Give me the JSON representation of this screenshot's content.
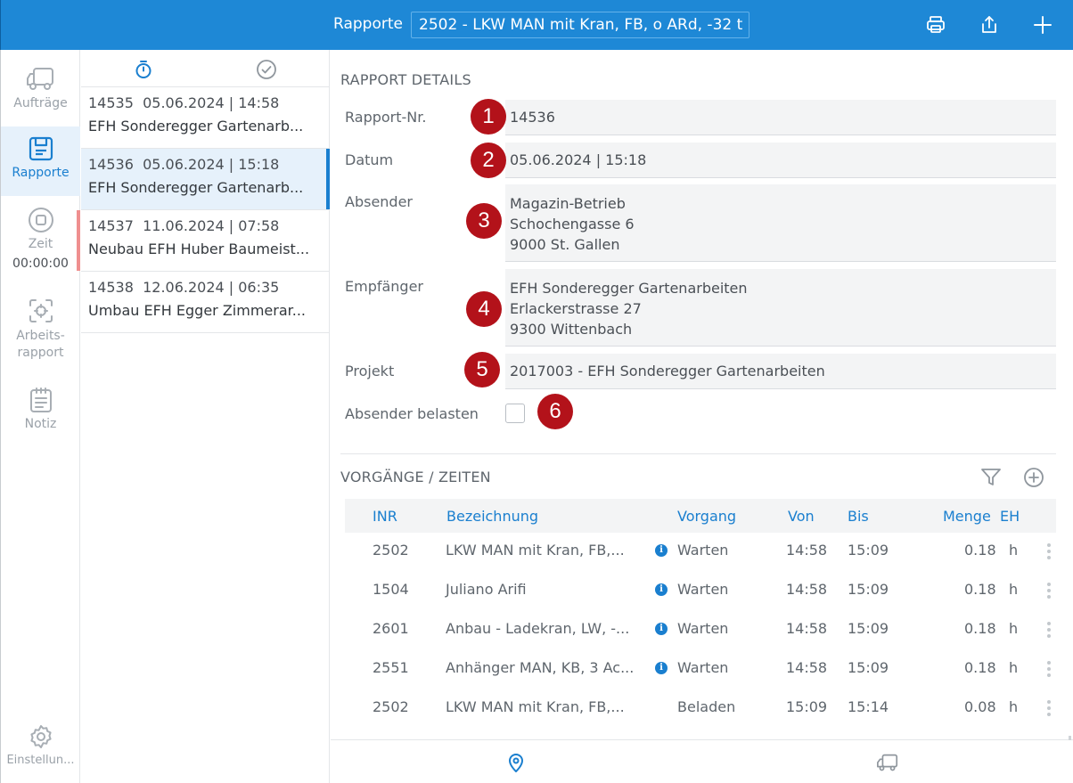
{
  "topbar": {
    "title": "Rapporte",
    "selected_vehicle": "2502 - LKW MAN mit Kran, FB, o ARd, -32 t",
    "icons": [
      "printer-icon",
      "share-icon",
      "plus-icon"
    ]
  },
  "sidebar": {
    "items": [
      {
        "label": "Aufträge",
        "icon": "truck-icon"
      },
      {
        "label": "Rapporte",
        "icon": "report-icon"
      },
      {
        "label": "Zeit",
        "icon": "stop-timer-icon",
        "timer": "00:00:00"
      },
      {
        "label": "Arbeits-\nrapport",
        "icon": "target-icon"
      },
      {
        "label": "Notiz",
        "icon": "notepad-icon"
      },
      {
        "label": "Einstellun...",
        "icon": "gear-icon"
      }
    ]
  },
  "list": {
    "tabs": [
      "stopwatch-icon",
      "check-circle-icon"
    ],
    "items": [
      {
        "nr": "14535",
        "date": "05.06.2024 | 14:58",
        "title": "EFH Sonderegger Gartenarb..."
      },
      {
        "nr": "14536",
        "date": "05.06.2024 | 15:18",
        "title": "EFH Sonderegger Gartenarb..."
      },
      {
        "nr": "14537",
        "date": "11.06.2024 | 07:58",
        "title": "Neubau EFH Huber Baumeist..."
      },
      {
        "nr": "14538",
        "date": "12.06.2024 | 06:35",
        "title": "Umbau EFH Egger Zimmerar..."
      }
    ]
  },
  "details": {
    "section_title": "RAPPORT DETAILS",
    "fields": {
      "rapport_nr": {
        "label": "Rapport-Nr.",
        "value": "14536"
      },
      "datum": {
        "label": "Datum",
        "value": "05.06.2024 | 15:18"
      },
      "absender": {
        "label": "Absender",
        "lines": [
          "Magazin-Betrieb",
          "Schochengasse 6",
          "9000 St. Gallen"
        ]
      },
      "empfaenger": {
        "label": "Empfänger",
        "lines": [
          "EFH Sonderegger Gartenarbeiten",
          "Erlackerstrasse 27",
          "9300 Wittenbach"
        ]
      },
      "projekt": {
        "label": "Projekt",
        "value": "2017003 - EFH Sonderegger Gartenarbeiten"
      },
      "absender_belasten": {
        "label": "Absender belasten",
        "checked": false
      }
    },
    "badges": [
      "1",
      "2",
      "3",
      "4",
      "5",
      "6"
    ]
  },
  "vorgaenge": {
    "section_title": "VORGÄNGE / ZEITEN",
    "icons": [
      "filter-icon",
      "add-circle-icon"
    ],
    "columns": [
      "INR",
      "Bezeichnung",
      "Vorgang",
      "Von",
      "Bis",
      "Menge",
      "EH"
    ],
    "rows": [
      {
        "inr": "2502",
        "bez": "LKW MAN mit Kran, FB,...",
        "info": true,
        "vorgang": "Warten",
        "von": "14:58",
        "bis": "15:09",
        "menge": "0.18",
        "eh": "h"
      },
      {
        "inr": "1504",
        "bez": "Juliano Arifi",
        "info": true,
        "vorgang": "Warten",
        "von": "14:58",
        "bis": "15:09",
        "menge": "0.18",
        "eh": "h"
      },
      {
        "inr": "2601",
        "bez": "Anbau - Ladekran, LW, -...",
        "info": true,
        "vorgang": "Warten",
        "von": "14:58",
        "bis": "15:09",
        "menge": "0.18",
        "eh": "h"
      },
      {
        "inr": "2551",
        "bez": "Anhänger MAN, KB, 3 Ac...",
        "info": true,
        "vorgang": "Warten",
        "von": "14:58",
        "bis": "15:09",
        "menge": "0.18",
        "eh": "h"
      },
      {
        "inr": "2502",
        "bez": "LKW MAN mit Kran, FB,...",
        "info": false,
        "vorgang": "Beladen",
        "von": "15:09",
        "bis": "15:14",
        "menge": "0.08",
        "eh": "h"
      }
    ]
  },
  "bottombar": {
    "tabs": [
      "location-pin-icon",
      "truck-icon"
    ]
  },
  "colors": {
    "accent": "#1e88d6",
    "badge": "#b3121a",
    "flag": "#ef8f8f"
  }
}
